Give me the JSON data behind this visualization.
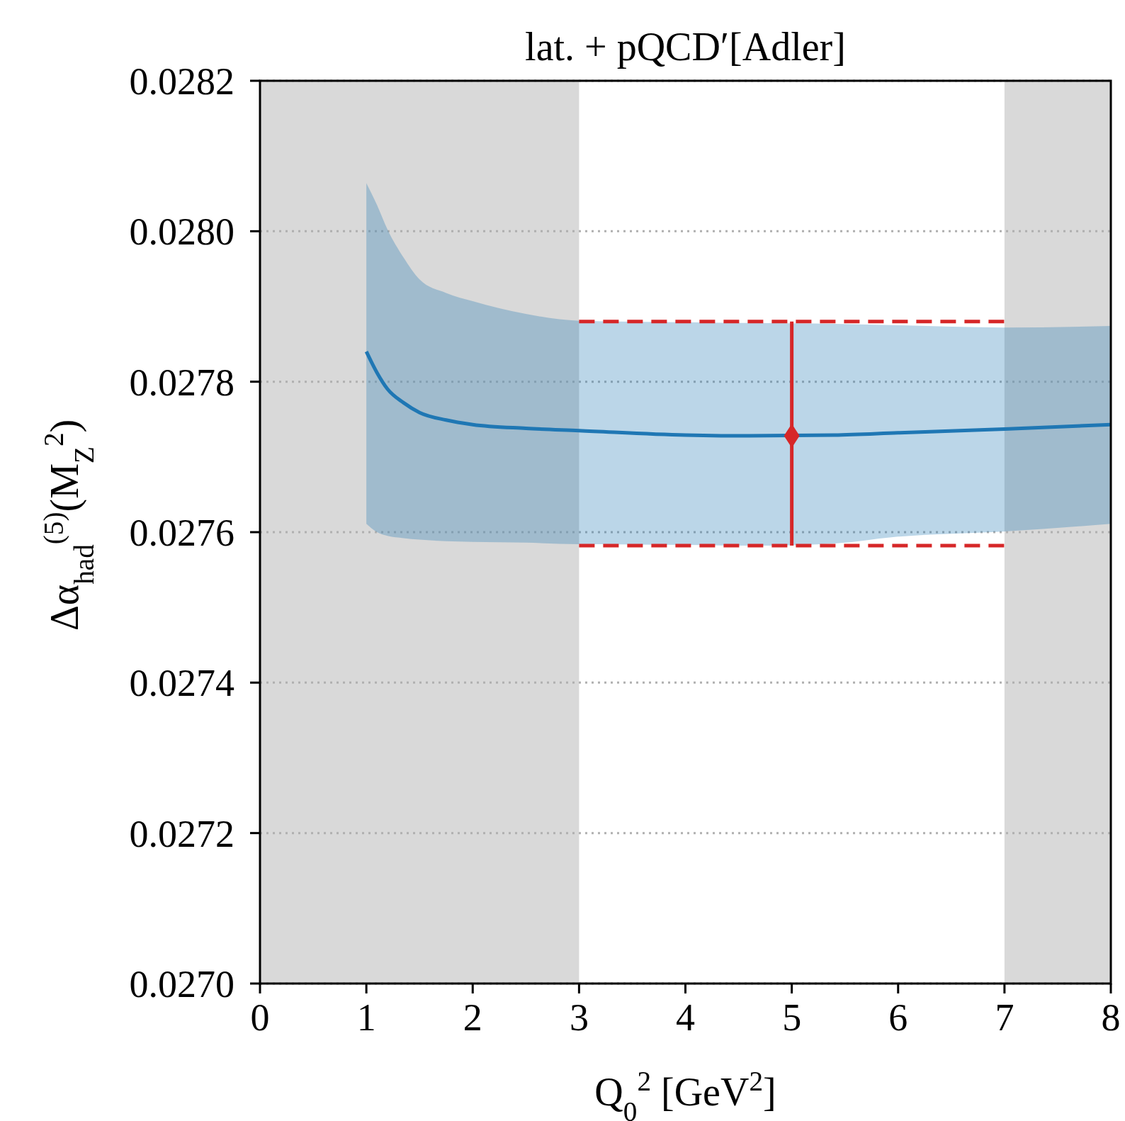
{
  "chart_data": {
    "type": "line",
    "title": "lat. + pQCD′[Adler]",
    "xlabel": "Q$_{0}$$^{2}$ [GeV$^{2}$]",
    "ylabel": "Δα$_{had}$$^{(5)}$(M$_{Z}$$^{2}$)",
    "xlim": [
      0,
      8
    ],
    "xticks": [
      0,
      1,
      2,
      3,
      4,
      5,
      6,
      7,
      8
    ],
    "ylim": [
      0.027,
      0.0282
    ],
    "yticks": [
      {
        "value": 0.027,
        "label": "0.0270"
      },
      {
        "value": 0.0272,
        "label": "0.0272"
      },
      {
        "value": 0.0274,
        "label": "0.0274"
      },
      {
        "value": 0.0276,
        "label": "0.0276"
      },
      {
        "value": 0.0278,
        "label": "0.0278"
      },
      {
        "value": 0.028,
        "label": "0.0280"
      },
      {
        "value": 0.0282,
        "label": "0.0282"
      }
    ],
    "grid": "y",
    "bands": [
      {
        "axis": "x",
        "from": 0,
        "to": 3,
        "color": "#d9d9d9"
      },
      {
        "axis": "x",
        "from": 7,
        "to": 8,
        "color": "#d9d9d9"
      }
    ],
    "series": [
      {
        "color": "#1f77b4",
        "x": [
          1,
          1.1,
          1.2,
          1.35,
          1.5,
          1.75,
          2,
          2.5,
          3,
          4,
          4.6,
          5.4,
          6,
          7,
          8
        ],
        "values": [
          0.02784,
          0.027812,
          0.02779,
          0.027772,
          0.027759,
          0.027749,
          0.027743,
          0.027738,
          0.027735,
          0.027729,
          0.027728,
          0.027729,
          0.027732,
          0.027737,
          0.027743
        ],
        "lower": [
          0.027611,
          0.0276,
          0.027595,
          0.027592,
          0.02759,
          0.027588,
          0.027587,
          0.027586,
          0.027584,
          0.027583,
          0.027582,
          0.027585,
          0.027594,
          0.027601,
          0.027611
        ],
        "upper": [
          0.028064,
          0.028035,
          0.028002,
          0.027965,
          0.027936,
          0.027918,
          0.027907,
          0.02789,
          0.027881,
          0.027879,
          0.027878,
          0.027877,
          0.027875,
          0.027872,
          0.027874
        ]
      },
      {
        "type": "line",
        "line_style": "dashed",
        "color": "#d62728",
        "x": [
          3,
          7
        ],
        "values": [
          0.02788,
          0.02788
        ]
      },
      {
        "type": "line",
        "line_style": "dashed",
        "color": "#d62728",
        "x": [
          3,
          7
        ],
        "values": [
          0.027582,
          0.027582
        ]
      },
      {
        "type": "scatter",
        "marker": "diamond",
        "color": "#d62728",
        "x": [
          5
        ],
        "values": [
          0.027728
        ],
        "errors": [
          [
            0.027582,
            0.02788
          ]
        ]
      }
    ]
  }
}
